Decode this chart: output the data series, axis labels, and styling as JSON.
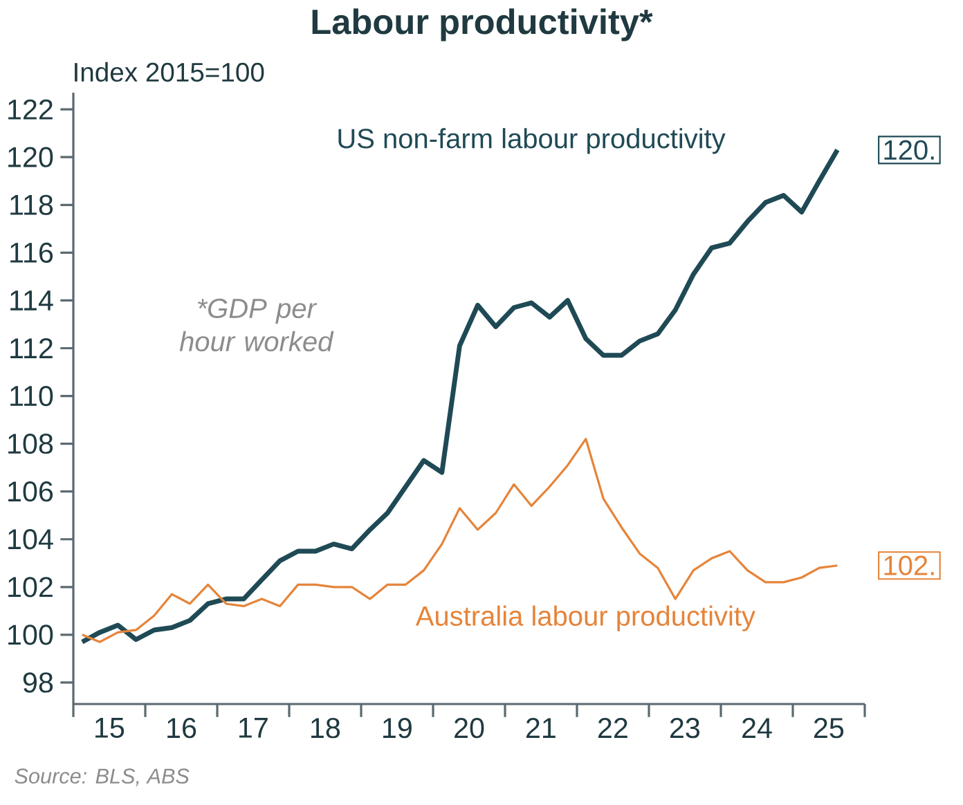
{
  "chart_data": {
    "type": "line",
    "title": "Labour productivity*",
    "ylabel": "Index 2015=100",
    "x": [
      "2015-02-15",
      "2015-05-15",
      "2015-08-15",
      "2015-11-15",
      "2016-02-15",
      "2016-05-15",
      "2016-08-15",
      "2016-11-15",
      "2017-02-15",
      "2017-05-15",
      "2017-08-15",
      "2017-11-15",
      "2018-02-15",
      "2018-05-15",
      "2018-08-15",
      "2018-11-15",
      "2019-02-15",
      "2019-05-15",
      "2019-08-15",
      "2019-11-15",
      "2020-02-15",
      "2020-05-15",
      "2020-08-15",
      "2020-11-15",
      "2021-02-15",
      "2021-05-15",
      "2021-08-15",
      "2021-11-15",
      "2022-02-15",
      "2022-05-15",
      "2022-08-15",
      "2022-11-15",
      "2023-02-15",
      "2023-05-15",
      "2023-08-15",
      "2023-11-15",
      "2024-02-15",
      "2024-05-15",
      "2024-08-15",
      "2024-11-15",
      "2025-02-15",
      "2025-05-15",
      "2025-08-15"
    ],
    "series": [
      {
        "name": "US non-farm labour productivity",
        "color": "#1f4a55",
        "values": [
          99.7,
          100.1,
          100.4,
          99.8,
          100.2,
          100.3,
          100.6,
          101.3,
          101.5,
          101.5,
          102.3,
          103.1,
          103.5,
          103.5,
          103.8,
          103.6,
          104.4,
          105.1,
          106.2,
          107.3,
          106.8,
          112.1,
          113.8,
          112.9,
          113.7,
          113.9,
          113.3,
          114.0,
          112.4,
          111.7,
          111.7,
          112.3,
          112.6,
          113.6,
          115.1,
          116.2,
          116.4,
          117.3,
          118.1,
          118.4,
          117.7,
          119.0,
          120.3
        ]
      },
      {
        "name": "Australia labour productivity",
        "color": "#e5843a",
        "values": [
          100.0,
          99.7,
          100.1,
          100.2,
          100.8,
          101.7,
          101.3,
          102.1,
          101.3,
          101.2,
          101.5,
          101.2,
          102.1,
          102.1,
          102.0,
          102.0,
          101.5,
          102.1,
          102.1,
          102.7,
          103.8,
          105.3,
          104.4,
          105.1,
          106.3,
          105.4,
          106.2,
          107.1,
          108.2,
          105.7,
          104.5,
          103.4,
          102.8,
          101.5,
          102.7,
          103.2,
          103.5,
          102.7,
          102.2,
          102.2,
          102.4,
          102.8,
          102.9
        ]
      }
    ],
    "xlim": [
      "2015-01-01",
      "2026-01-01"
    ],
    "xticks": [
      {
        "value": "2015-01-01",
        "label": null
      },
      {
        "value": "2016-01-01",
        "label": null
      },
      {
        "value": "2017-01-01",
        "label": null
      },
      {
        "value": "2018-01-01",
        "label": null
      },
      {
        "value": "2019-01-01",
        "label": null
      },
      {
        "value": "2020-01-01",
        "label": null
      },
      {
        "value": "2021-01-01",
        "label": null
      },
      {
        "value": "2022-01-01",
        "label": null
      },
      {
        "value": "2023-01-01",
        "label": null
      },
      {
        "value": "2024-01-01",
        "label": null
      },
      {
        "value": "2025-01-01",
        "label": null
      },
      {
        "value": "2026-01-01",
        "label": null
      },
      {
        "value": "2015-07-02",
        "label": "15"
      },
      {
        "value": "2016-07-02",
        "label": "16"
      },
      {
        "value": "2017-07-02",
        "label": "17"
      },
      {
        "value": "2018-07-02",
        "label": "18"
      },
      {
        "value": "2019-07-02",
        "label": "19"
      },
      {
        "value": "2020-07-02",
        "label": "20"
      },
      {
        "value": "2021-07-02",
        "label": "21"
      },
      {
        "value": "2022-07-02",
        "label": "22"
      },
      {
        "value": "2023-07-02",
        "label": "23"
      },
      {
        "value": "2024-07-02",
        "label": "24"
      },
      {
        "value": "2025-07-02",
        "label": "25"
      }
    ],
    "ylim": [
      97.1,
      122.7
    ],
    "yticks": [
      98,
      100,
      102,
      104,
      106,
      108,
      110,
      112,
      114,
      116,
      118,
      120,
      122
    ],
    "grid": false,
    "legend": false,
    "marker": "none",
    "line_style": "solid",
    "annotations": [
      "*GDP per hour worked",
      {
        "text": "120.",
        "x": "2025-08-15",
        "y": 120.3
      },
      {
        "text": "102.",
        "x": "2025-08-15",
        "y": 102.9
      },
      "Source: BLS, ABS"
    ]
  }
}
